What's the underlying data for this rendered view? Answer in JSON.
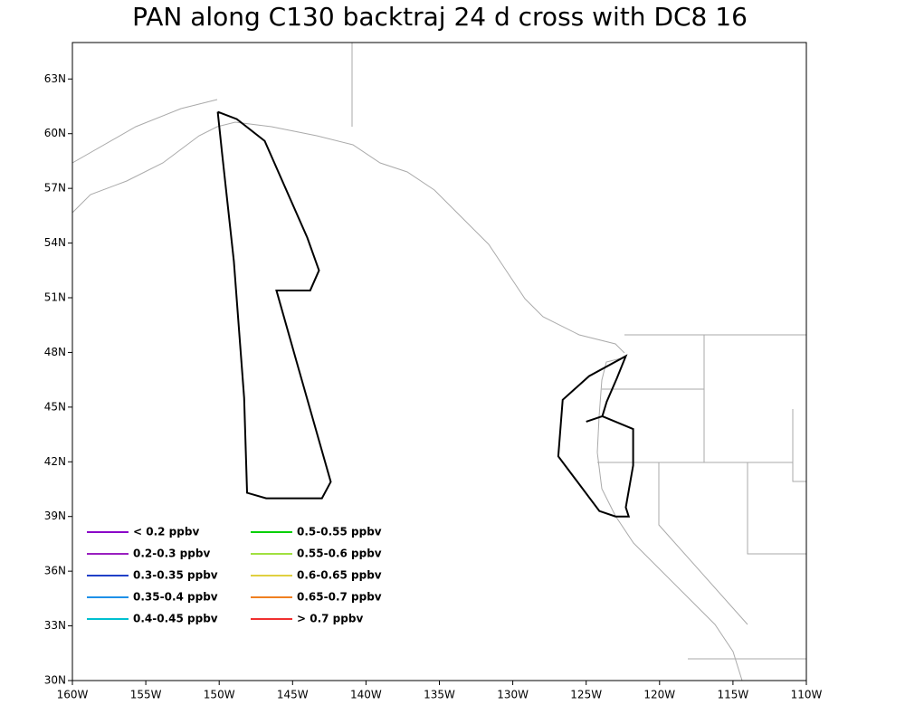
{
  "chart_data": {
    "type": "map",
    "title": "PAN along C130 backtraj 24 d cross with DC8 16",
    "xlim": [
      -160,
      -110
    ],
    "ylim": [
      30,
      65
    ],
    "xticks": [
      {
        "value": -160,
        "label": "160W"
      },
      {
        "value": -155,
        "label": "155W"
      },
      {
        "value": -150,
        "label": "150W"
      },
      {
        "value": -145,
        "label": "145W"
      },
      {
        "value": -140,
        "label": "140W"
      },
      {
        "value": -135,
        "label": "135W"
      },
      {
        "value": -130,
        "label": "130W"
      },
      {
        "value": -125,
        "label": "125W"
      },
      {
        "value": -120,
        "label": "120W"
      },
      {
        "value": -115,
        "label": "115W"
      },
      {
        "value": -110,
        "label": "110W"
      }
    ],
    "yticks": [
      {
        "value": 30,
        "label": "30N"
      },
      {
        "value": 33,
        "label": "33N"
      },
      {
        "value": 36,
        "label": "36N"
      },
      {
        "value": 39,
        "label": "39N"
      },
      {
        "value": 42,
        "label": "42N"
      },
      {
        "value": 45,
        "label": "45N"
      },
      {
        "value": 48,
        "label": "48N"
      },
      {
        "value": 51,
        "label": "51N"
      },
      {
        "value": 54,
        "label": "54N"
      },
      {
        "value": 57,
        "label": "57N"
      },
      {
        "value": 60,
        "label": "60N"
      },
      {
        "value": 63,
        "label": "63N"
      }
    ],
    "legend": [
      {
        "label": "< 0.2 ppbv",
        "color": "#8a00c8"
      },
      {
        "label": "0.2-0.3 ppbv",
        "color": "#9a20c0"
      },
      {
        "label": "0.3-0.35 ppbv",
        "color": "#2040c8"
      },
      {
        "label": "0.35-0.4 ppbv",
        "color": "#1e90e8"
      },
      {
        "label": "0.4-0.45 ppbv",
        "color": "#00c0d0"
      },
      {
        "label": "0.5-0.55 ppbv",
        "color": "#00d000"
      },
      {
        "label": "0.55-0.6 ppbv",
        "color": "#a0e040"
      },
      {
        "label": "0.6-0.65 ppbv",
        "color": "#e0d040"
      },
      {
        "label": "0.65-0.7 ppbv",
        "color": "#f08020"
      },
      {
        "label": "> 0.7 ppbv",
        "color": "#f03030"
      }
    ],
    "tracks": [
      {
        "color": "#000000",
        "x": [
          -150.1,
          -148.8,
          -146.9,
          -144.0,
          -143.2,
          -143.8,
          -146.1,
          -144.8,
          -142.4,
          -143.0,
          -146.8,
          -148.1,
          -148.3,
          -149.0,
          -149.8,
          -150.1
        ],
        "y": [
          61.2,
          60.8,
          59.6,
          54.3,
          52.5,
          51.4,
          51.4,
          47.7,
          40.9,
          40.0,
          40.0,
          40.3,
          45.5,
          53.0,
          58.9,
          61.2
        ]
      },
      {
        "color": "#000000",
        "x": [
          -125.0,
          -123.9,
          -121.8,
          -121.8,
          -122.3,
          -122.1,
          -123.0,
          -124.1,
          -126.9,
          -126.6,
          -124.8,
          -122.3,
          -122.9,
          -123.6,
          -123.9
        ],
        "y": [
          44.2,
          44.5,
          43.8,
          41.8,
          39.5,
          39.0,
          39.0,
          39.3,
          42.3,
          45.4,
          46.7,
          47.8,
          46.6,
          45.3,
          44.5
        ]
      }
    ]
  }
}
